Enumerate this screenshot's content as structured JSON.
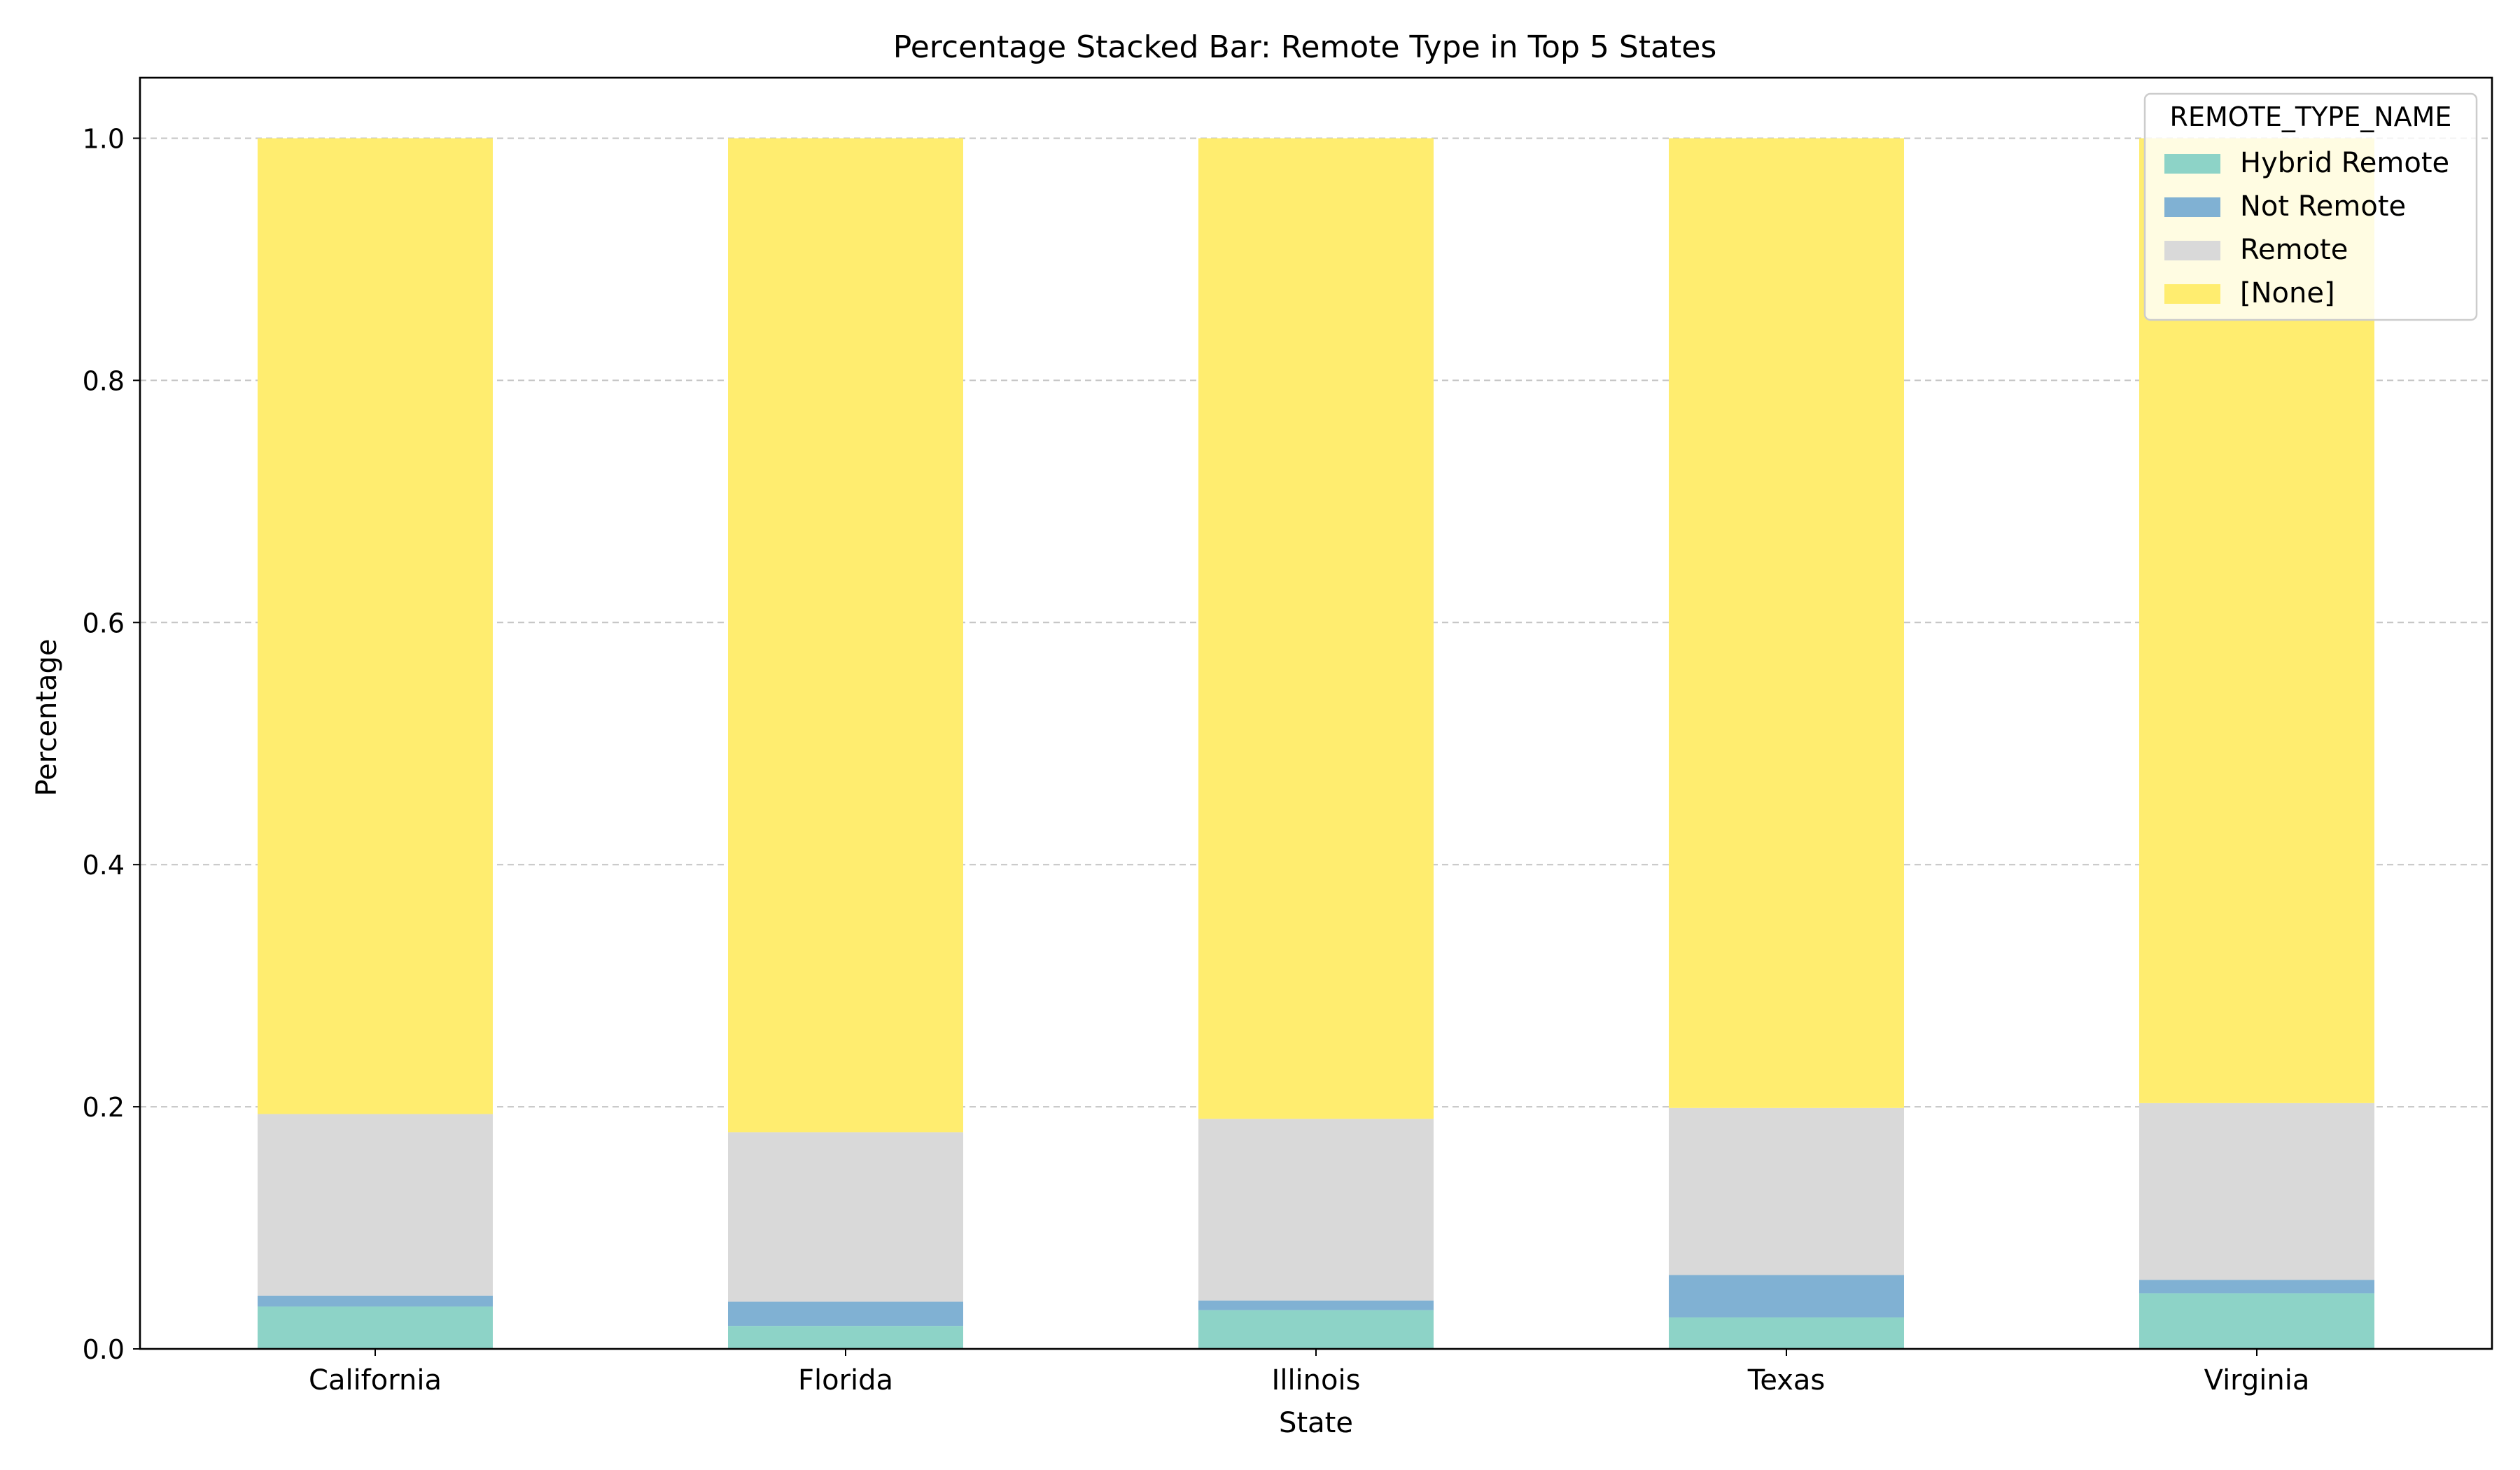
{
  "chart_data": {
    "type": "bar",
    "stacked": true,
    "title": "Percentage Stacked Bar: Remote Type in Top 5 States",
    "xlabel": "State",
    "ylabel": "Percentage",
    "ylim": [
      0,
      1.05
    ],
    "yticks": [
      "0.0",
      "0.2",
      "0.4",
      "0.6",
      "0.8",
      "1.0"
    ],
    "grid": "y-dashed",
    "legend_title": "REMOTE_TYPE_NAME",
    "legend_position": "top-right",
    "categories": [
      "California",
      "Florida",
      "Illinois",
      "Texas",
      "Virginia"
    ],
    "series": [
      {
        "name": "Hybrid Remote",
        "color": "#8dd3c7",
        "values": [
          0.035,
          0.019,
          0.032,
          0.026,
          0.046
        ]
      },
      {
        "name": "Not Remote",
        "color": "#80b1d3",
        "values": [
          0.009,
          0.02,
          0.008,
          0.035,
          0.011
        ]
      },
      {
        "name": "Remote",
        "color": "#d9d9d9",
        "values": [
          0.15,
          0.14,
          0.15,
          0.138,
          0.146
        ]
      },
      {
        "name": "[None]",
        "color": "#ffed6f",
        "values": [
          0.806,
          0.821,
          0.81,
          0.801,
          0.797
        ]
      }
    ]
  }
}
